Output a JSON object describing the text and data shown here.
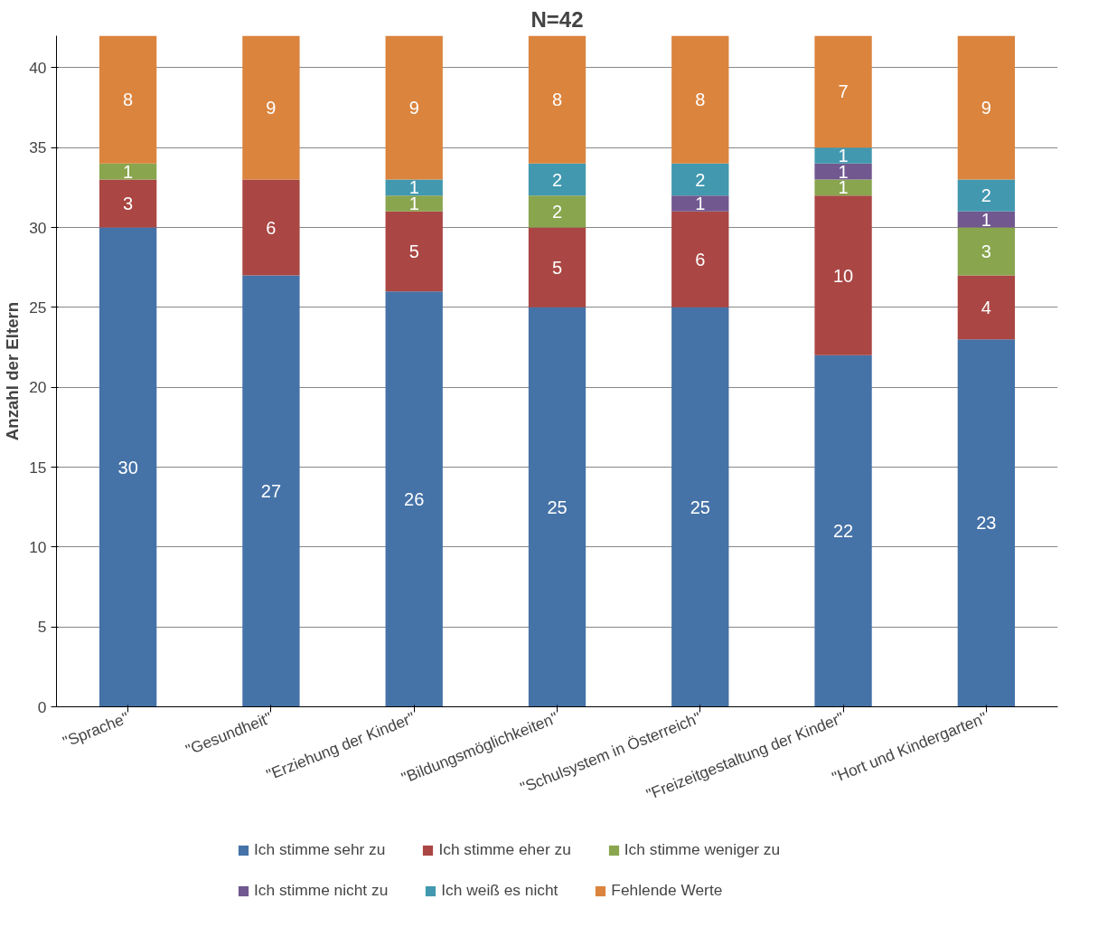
{
  "chart_data": {
    "type": "bar",
    "title": "N=42",
    "ylabel": "Anzahl der Eltern",
    "categories": [
      "\"Sprache\"",
      "\"Gesundheit\"",
      "\"Erziehung der Kinder\"",
      "\"Bildungsmöglichkeiten\"",
      "\"Schulsystem in Österreich\"",
      "\"Freizeitgestaltung der Kinder\"",
      "\"Hort und Kindergarten\""
    ],
    "series": [
      {
        "name": "Ich stimme sehr zu",
        "color": "#4572a7",
        "values": [
          30,
          27,
          26,
          25,
          25,
          22,
          23
        ]
      },
      {
        "name": "Ich stimme eher zu",
        "color": "#aa4643",
        "values": [
          3,
          6,
          5,
          5,
          6,
          10,
          4
        ]
      },
      {
        "name": "Ich stimme weniger zu",
        "color": "#89a54e",
        "values": [
          1,
          null,
          1,
          2,
          null,
          1,
          3
        ]
      },
      {
        "name": "Ich stimme nicht zu",
        "color": "#71588f",
        "values": [
          null,
          null,
          null,
          null,
          1,
          1,
          1
        ]
      },
      {
        "name": "Ich weiß es nicht",
        "color": "#4198af",
        "values": [
          null,
          null,
          1,
          2,
          2,
          1,
          2
        ]
      },
      {
        "name": "Fehlende Werte",
        "color": "#db843d",
        "values": [
          8,
          9,
          9,
          8,
          8,
          7,
          9
        ]
      }
    ],
    "stacked": true,
    "ylim": [
      0,
      42
    ],
    "yticks": [
      0,
      5,
      10,
      15,
      20,
      25,
      30,
      35,
      40
    ],
    "grid": "y",
    "legend": "bottom",
    "data_labels": true
  }
}
